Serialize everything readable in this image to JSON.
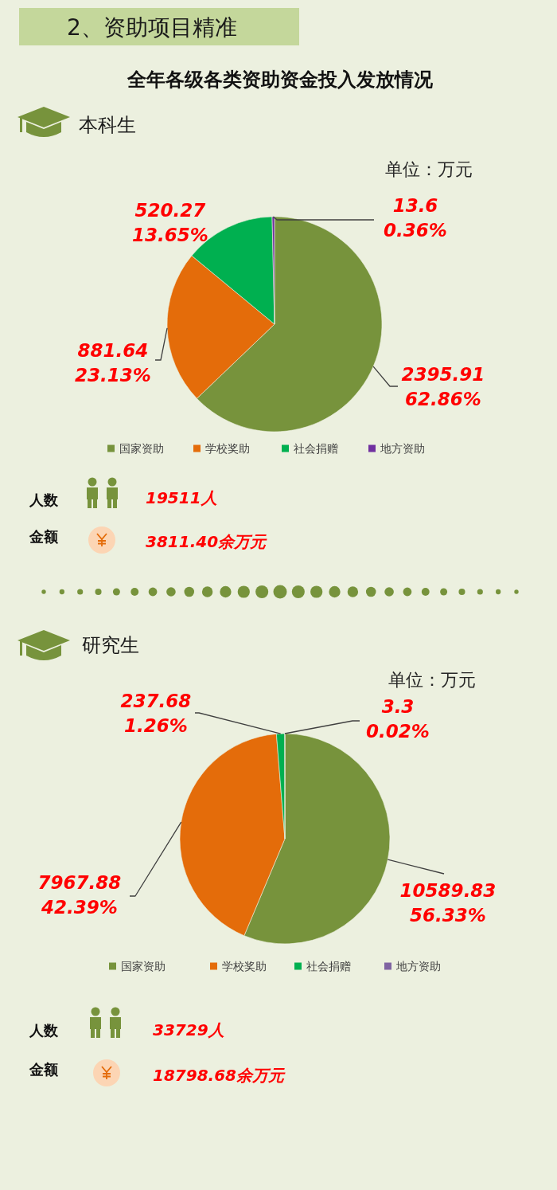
{
  "chart_data": [
    {
      "type": "other",
      "title": "2、资助项目精准",
      "subtitle": "全年各级各类资助资金投入发放情况"
    },
    {
      "type": "pie",
      "title": "本科生",
      "subtitle": "单位：万元",
      "categories": [
        "国家资助",
        "学校奖助",
        "社会捐赠",
        "地方资助"
      ],
      "values": [
        2395.91,
        881.64,
        520.27,
        13.6
      ],
      "colors": [
        "#77933c",
        "#e46c0a",
        "#00b050",
        "#7030a0"
      ],
      "value_labels": [
        "2395.91\n62.86%",
        "881.64\n23.13%",
        "520.27\n13.65%",
        "13.6\n0.36%"
      ],
      "legend": "bottom",
      "annotations": [
        "人数",
        "19511人",
        "金额",
        "3811.40余万元"
      ]
    },
    {
      "type": "pie",
      "title": "研究生",
      "subtitle": "单位：万元",
      "categories": [
        "国家资助",
        "学校奖助",
        "社会捐赠",
        "地方资助"
      ],
      "values": [
        10589.83,
        7967.88,
        237.68,
        3.3
      ],
      "colors": [
        "#77933c",
        "#e46c0a",
        "#00b050",
        "#8064a2"
      ],
      "value_labels": [
        "10589.83\n56.33%",
        "7967.88\n42.39%",
        "237.68\n1.26%",
        "3.3\n0.02%"
      ],
      "legend": "bottom",
      "annotations": [
        "人数",
        "33729人",
        "金额",
        "18798.68余万元"
      ]
    }
  ]
}
